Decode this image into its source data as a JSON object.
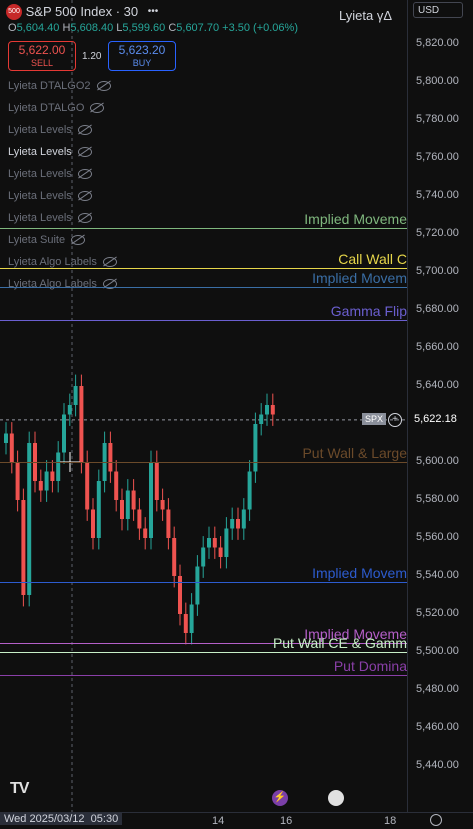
{
  "header": {
    "symbol_badge": "500",
    "title": "S&P 500 Index · 30",
    "more": "•••",
    "right_title": "Lyieta γΔ",
    "currency": "USD"
  },
  "ohlc": {
    "o_label": "O",
    "o": "5,604.40",
    "h_label": "H",
    "h": "5,608.40",
    "l_label": "L",
    "l": "5,599.60",
    "c_label": "C",
    "c": "5,607.70",
    "change": "+3.50 (+0.06%)"
  },
  "trade": {
    "sell_price": "5,622.00",
    "sell_label": "SELL",
    "spread": "1.20",
    "buy_price": "5,623.20",
    "buy_label": "BUY"
  },
  "indicators": [
    {
      "label": "Lyieta DTALGO2",
      "active": false
    },
    {
      "label": "Lyieta DTALGO",
      "active": false
    },
    {
      "label": "Lyieta Levels",
      "active": false
    },
    {
      "label": "Lyieta Levels",
      "active": true
    },
    {
      "label": "Lyieta Levels",
      "active": false
    },
    {
      "label": "Lyieta Levels",
      "active": false
    },
    {
      "label": "Lyieta Levels",
      "active": false
    },
    {
      "label": "Lyieta Suite",
      "active": false
    },
    {
      "label": "Lyieta Algo Labels",
      "active": false
    },
    {
      "label": "Lyieta Algo Labels",
      "active": false
    }
  ],
  "levels": [
    {
      "label": "Implied Moveme",
      "price": 5723,
      "color": "#7fb77e"
    },
    {
      "label": "Call Wall C",
      "price": 5702,
      "color": "#e6d64a"
    },
    {
      "label": "Implied Movem",
      "price": 5692,
      "color": "#3a6ea5"
    },
    {
      "label": "Gamma Flip",
      "price": 5675,
      "color": "#6b5fd0"
    },
    {
      "label": "Put Wall & Large",
      "price": 5600,
      "color": "#6b4a2a"
    },
    {
      "label": "Implied Movem",
      "price": 5537,
      "color": "#2d5ccf"
    },
    {
      "label": "Implied Moveme",
      "price": 5505,
      "color": "#b55fc9"
    },
    {
      "label": "Put Wall CE & Gamm",
      "price": 5500,
      "color": "#c8f0c8"
    },
    {
      "label": "Put Domina",
      "price": 5488,
      "color": "#8a3fa8"
    }
  ],
  "price_axis": {
    "ticks": [
      "5,820.00",
      "5,800.00",
      "5,780.00",
      "5,760.00",
      "5,740.00",
      "5,720.00",
      "5,700.00",
      "5,680.00",
      "5,660.00",
      "5,640.00",
      "5,600.00",
      "5,580.00",
      "5,560.00",
      "5,540.00",
      "5,520.00",
      "5,500.00",
      "5,480.00",
      "5,460.00",
      "5,440.00"
    ],
    "last_label": "SPX",
    "last_price": "5,622.18",
    "last_price_value": 5622.18
  },
  "time_axis": {
    "cursor_date": "Wed 2025/03/12",
    "cursor_time": "05:30",
    "labels": [
      "14",
      "16",
      "18"
    ]
  },
  "watermark": "TV"
}
